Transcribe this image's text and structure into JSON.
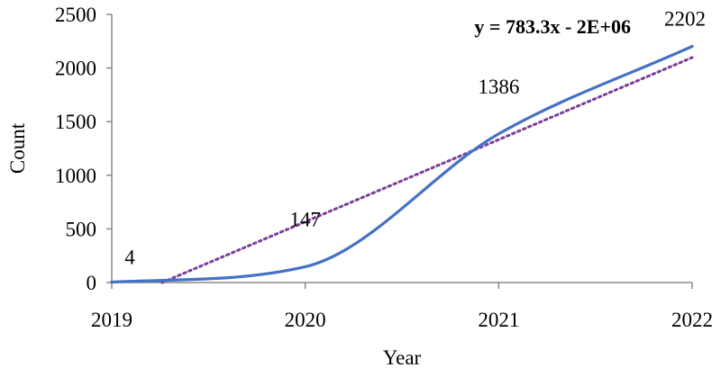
{
  "chart_data": {
    "type": "line",
    "title": "",
    "xlabel": "Year",
    "ylabel": "Count",
    "x": [
      2019,
      2020,
      2021,
      2022
    ],
    "xlim": [
      2019,
      2022
    ],
    "ylim": [
      0,
      2500
    ],
    "x_ticks": [
      "2019",
      "2020",
      "2021",
      "2022"
    ],
    "y_ticks": [
      "0",
      "500",
      "1000",
      "1500",
      "2000",
      "2500"
    ],
    "series": [
      {
        "values": [
          4,
          147,
          1386,
          2202
        ],
        "data_labels": [
          "4",
          "147",
          "1386",
          "2202"
        ],
        "color": "#4472C4",
        "style": "solid"
      }
    ],
    "trendline": {
      "type": "linear",
      "equation": "y = 783.3x - 2E+06",
      "color": "#7B3F99",
      "style": "dotted",
      "start": [
        2019.26,
        0
      ],
      "end": [
        2022,
        2098
      ]
    },
    "grid": false,
    "legend": "none"
  }
}
